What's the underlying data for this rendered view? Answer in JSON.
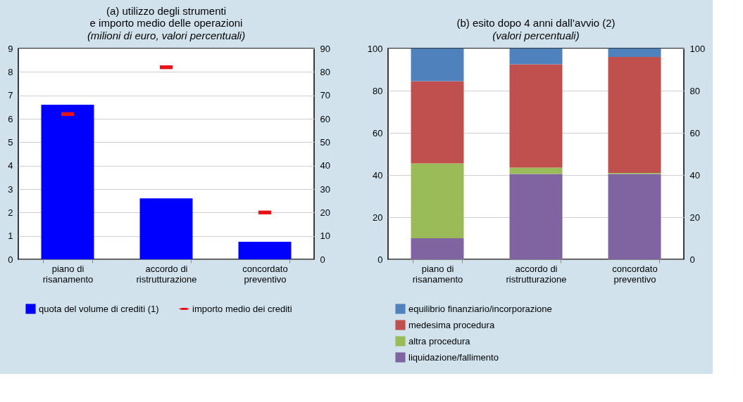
{
  "chart_data": [
    {
      "type": "bar",
      "title": "(a) utilizzo degli strumenti\ne importo medio delle operazioni",
      "subtitle": "(milioni di euro, valori percentuali)",
      "categories": [
        "piano di risanamento",
        "accordo di ristrutturazione",
        "concordato preventivo"
      ],
      "series": [
        {
          "name": "quota del volume di crediti (1)",
          "color": "#0000ff",
          "values": [
            66,
            26,
            7.5
          ],
          "axis": "y2"
        },
        {
          "name": "importo medio dei crediti",
          "type": "scatter",
          "color": "#e8121a",
          "values": [
            6.2,
            8.2,
            2.0
          ]
        }
      ],
      "ylim": [
        0,
        9
      ],
      "yticks": [
        0,
        1,
        2,
        3,
        4,
        5,
        6,
        7,
        8,
        9
      ],
      "y2lim": [
        0,
        90
      ],
      "y2ticks": [
        0,
        10,
        20,
        30,
        40,
        50,
        60,
        70,
        80,
        90
      ],
      "grid": "y",
      "legend": "bottom"
    },
    {
      "type": "bar",
      "stacked": true,
      "title": "(b) esito dopo 4 anni dall’avvio (2)",
      "subtitle": "(valori percentuali)",
      "categories": [
        "piano di risanamento",
        "accordo di ristrutturazione",
        "concordato preventivo"
      ],
      "series": [
        {
          "name": "liquidazione/fallimento",
          "color": "#8064a2",
          "values": [
            10,
            40.5,
            40.5
          ]
        },
        {
          "name": "altra procedura",
          "color": "#9bbb59",
          "values": [
            35.5,
            3,
            0.5
          ]
        },
        {
          "name": "medesima procedura",
          "color": "#c0504d",
          "values": [
            39,
            49,
            55
          ]
        },
        {
          "name": "equilibrio finanziario/incorporazione",
          "color": "#4f81bd",
          "values": [
            15.5,
            7.5,
            4
          ]
        }
      ],
      "ylim": [
        0,
        100
      ],
      "yticks": [
        0,
        20,
        40,
        60,
        80,
        100
      ],
      "y2lim": [
        0,
        100
      ],
      "y2ticks": [
        0,
        20,
        40,
        60,
        80,
        100
      ],
      "grid": "y",
      "legend": "bottom"
    }
  ]
}
